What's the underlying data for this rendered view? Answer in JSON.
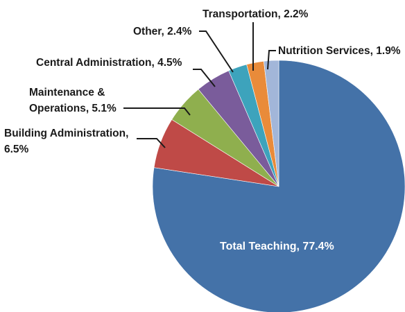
{
  "chart_data": {
    "type": "pie",
    "title": "",
    "slices": [
      {
        "label": "Total Teaching",
        "value": 77.4,
        "display": "Total Teaching, 77.4%",
        "color": "#4472A8"
      },
      {
        "label": "Building Administration",
        "value": 6.5,
        "display": "Building Administration, 6.5%",
        "color": "#BF4A47"
      },
      {
        "label": "Maintenance & Operations",
        "value": 5.1,
        "display": "Maintenance & Operations, 5.1%",
        "color": "#8FAF4E"
      },
      {
        "label": "Central Administration",
        "value": 4.5,
        "display": "Central Administration, 4.5%",
        "color": "#7A5C9B"
      },
      {
        "label": "Other",
        "value": 2.4,
        "display": "Other, 2.4%",
        "color": "#3DA3BC"
      },
      {
        "label": "Transportation",
        "value": 2.2,
        "display": "Transportation, 2.2%",
        "color": "#E98B3A"
      },
      {
        "label": "Nutrition Services",
        "value": 1.9,
        "display": "Nutrition Services, 1.9%",
        "color": "#A2B6D9"
      }
    ],
    "labels": {
      "total_teaching": "Total Teaching, 77.4%",
      "building_admin_line1": "Building Administration,",
      "building_admin_line2": "6.5%",
      "maintenance_line1": "Maintenance &",
      "maintenance_line2": "Operations,  5.1%",
      "central_admin": "Central Administration, 4.5%",
      "other": "Other, 2.4%",
      "transportation": "Transportation, 2.2%",
      "nutrition": "Nutrition Services, 1.9%"
    },
    "legend": "none",
    "start_angle": "12 o'clock",
    "direction": "clockwise"
  }
}
